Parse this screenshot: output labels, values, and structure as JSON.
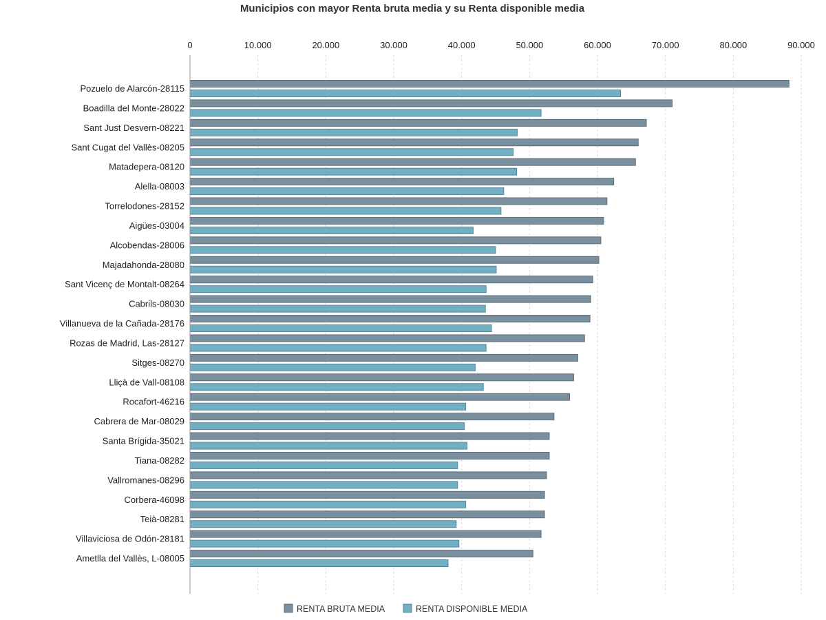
{
  "chart_data": {
    "type": "bar",
    "orientation": "horizontal",
    "title": "Municipios con mayor Renta bruta media y su Renta disponible media",
    "xlabel": "",
    "ylabel": "",
    "xlim": [
      0,
      90000
    ],
    "x_ticks": [
      0,
      10000,
      20000,
      30000,
      40000,
      50000,
      60000,
      70000,
      80000,
      90000
    ],
    "x_tick_labels": [
      "0",
      "10.000",
      "20.000",
      "30.000",
      "40.000",
      "50.000",
      "60.000",
      "70.000",
      "80.000",
      "90.000"
    ],
    "x_axis_position": "top",
    "grid": "vertical dashed",
    "legend_position": "bottom",
    "categories": [
      "Pozuelo de Alarcón-28115",
      "Boadilla del Monte-28022",
      "Sant Just Desvern-08221",
      "Sant Cugat del Vallès-08205",
      "Matadepera-08120",
      "Alella-08003",
      "Torrelodones-28152",
      "Aigües-03004",
      "Alcobendas-28006",
      "Majadahonda-28080",
      "Sant Vicenç de Montalt-08264",
      "Cabrils-08030",
      "Villanueva de la Cañada-28176",
      "Rozas de Madrid, Las-28127",
      "Sitges-08270",
      "Lliçà de Vall-08108",
      "Rocafort-46216",
      "Cabrera de Mar-08029",
      "Santa Brígida-35021",
      "Tiana-08282",
      "Vallromanes-08296",
      "Corbera-46098",
      "Teià-08281",
      "Villaviciosa de Odón-28181",
      "Ametlla del Vallès, L-08005"
    ],
    "series": [
      {
        "name": "RENTA BRUTA MEDIA",
        "color": "#7b909e",
        "values": [
          88200,
          71000,
          67200,
          66000,
          65600,
          62400,
          61400,
          60900,
          60500,
          60200,
          59300,
          59000,
          58900,
          58100,
          57100,
          56500,
          55900,
          53600,
          52900,
          52900,
          52500,
          52200,
          52200,
          51700,
          50500
        ]
      },
      {
        "name": "RENTA DISPONIBLE MEDIA",
        "color": "#72afc3",
        "values": [
          63400,
          51700,
          48200,
          47600,
          48100,
          46200,
          45800,
          41700,
          45000,
          45100,
          43600,
          43500,
          44400,
          43600,
          42000,
          43200,
          40600,
          40400,
          40800,
          39400,
          39400,
          40600,
          39200,
          39600,
          38000
        ]
      }
    ]
  }
}
